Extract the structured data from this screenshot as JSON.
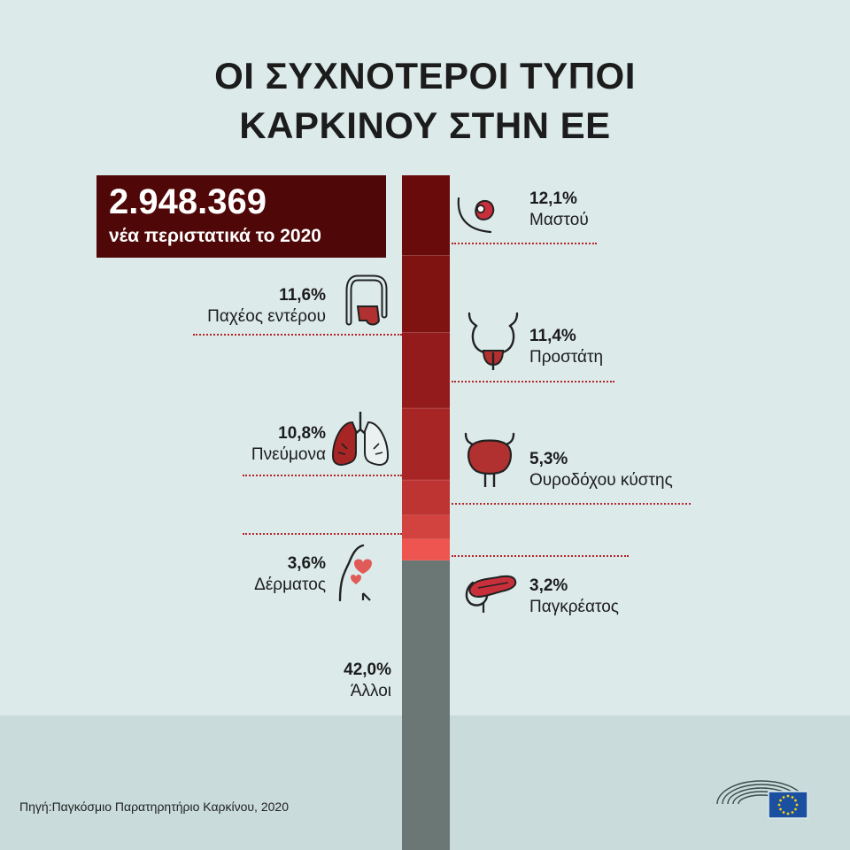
{
  "title": [
    "ΟΙ ΣΥΧΝΟΤΕΡΟΙ ΤΥΠΟΙ",
    "ΚΑΡΚΙΝΟΥ ΣΤΗΝ ΕΕ"
  ],
  "total": {
    "value": "2.948.369",
    "caption": "νέα περιστατικά το 2020"
  },
  "source": "Πηγή:Παγκόσμιο Παρατηρητήριο Καρκίνου, 2020",
  "colors": {
    "background": "#dceaea",
    "dark_red": "#4f0707",
    "others_grey": "#6b7775",
    "dotted_line": "#b5262a"
  },
  "chart_data": {
    "type": "bar",
    "stacked": true,
    "orientation": "vertical",
    "unit": "%",
    "categories": [
      "Μαστού",
      "Παχέος εντέρου",
      "Προστάτη",
      "Πνεύμονα",
      "Ουροδόχου κύστης",
      "Δέρματος",
      "Παγκρέατος",
      "Άλλοι"
    ],
    "values": [
      12.1,
      11.6,
      11.4,
      10.8,
      5.3,
      3.6,
      3.2,
      42.0
    ],
    "labels": [
      "12,1%",
      "11,6%",
      "11,4%",
      "10,8%",
      "5,3%",
      "3,6%",
      "3,2%",
      "42,0%"
    ],
    "segment_colors": [
      "#6a0b0b",
      "#7e1312",
      "#931b1b",
      "#a72525",
      "#bd3432",
      "#d24340",
      "#ee5450",
      "#6b7775"
    ],
    "icons": [
      "breast-icon",
      "colon-icon",
      "prostate-icon",
      "lung-icon",
      "bladder-icon",
      "skin-icon",
      "pancreas-icon",
      ""
    ]
  }
}
